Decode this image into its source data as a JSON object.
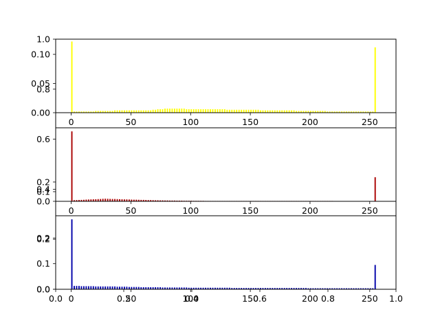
{
  "chart_data": [
    {
      "type": "bar",
      "series_color": "#ffff00",
      "xlim": [
        -13,
        272
      ],
      "ylim": [
        0,
        0.126
      ],
      "x_ticks": [
        "0",
        "50",
        "100",
        "150",
        "200",
        "250"
      ],
      "y_ticks": [
        "0.00",
        "0.05",
        "0.10"
      ],
      "bins": {
        "start": 0,
        "end": 255,
        "step": 2,
        "values": [
          0.122,
          0.002,
          0.002,
          0.002,
          0.002,
          0.002,
          0.002,
          0.002,
          0.002,
          0.002,
          0.003,
          0.003,
          0.003,
          0.003,
          0.003,
          0.003,
          0.003,
          0.003,
          0.004,
          0.004,
          0.004,
          0.004,
          0.004,
          0.004,
          0.004,
          0.004,
          0.004,
          0.004,
          0.004,
          0.004,
          0.004,
          0.004,
          0.004,
          0.004,
          0.005,
          0.005,
          0.006,
          0.006,
          0.006,
          0.007,
          0.007,
          0.007,
          0.007,
          0.007,
          0.007,
          0.007,
          0.007,
          0.007,
          0.006,
          0.006,
          0.006,
          0.006,
          0.006,
          0.006,
          0.006,
          0.006,
          0.006,
          0.006,
          0.006,
          0.006,
          0.006,
          0.006,
          0.006,
          0.006,
          0.006,
          0.005,
          0.005,
          0.005,
          0.005,
          0.005,
          0.005,
          0.005,
          0.005,
          0.005,
          0.005,
          0.005,
          0.005,
          0.005,
          0.005,
          0.004,
          0.004,
          0.004,
          0.004,
          0.004,
          0.004,
          0.004,
          0.004,
          0.004,
          0.004,
          0.004,
          0.004,
          0.004,
          0.004,
          0.004,
          0.003,
          0.003,
          0.003,
          0.003,
          0.003,
          0.003,
          0.003,
          0.003,
          0.003,
          0.003,
          0.003,
          0.003,
          0.003,
          0.002,
          0.002,
          0.002,
          0.002,
          0.002,
          0.002,
          0.002,
          0.002,
          0.002,
          0.002,
          0.002,
          0.002,
          0.002,
          0.002,
          0.002,
          0.002,
          0.002,
          0.002,
          0.002,
          0.002,
          0.112
        ]
      }
    },
    {
      "type": "bar",
      "series_color": "#aa0000",
      "xlim": [
        -13,
        272
      ],
      "ylim": [
        0,
        0.762
      ],
      "x_ticks": [
        "0",
        "50",
        "100",
        "150",
        "200",
        "250"
      ],
      "y_ticks": [
        "0.0",
        "0.1",
        "0.2"
      ],
      "bins": {
        "start": 0,
        "end": 255,
        "step": 2,
        "values": [
          0.725,
          0.012,
          0.013,
          0.014,
          0.015,
          0.016,
          0.018,
          0.019,
          0.02,
          0.021,
          0.022,
          0.023,
          0.024,
          0.026,
          0.027,
          0.026,
          0.025,
          0.024,
          0.024,
          0.023,
          0.022,
          0.021,
          0.02,
          0.02,
          0.019,
          0.018,
          0.017,
          0.017,
          0.016,
          0.015,
          0.015,
          0.014,
          0.013,
          0.013,
          0.012,
          0.011,
          0.011,
          0.01,
          0.01,
          0.009,
          0.009,
          0.008,
          0.008,
          0.008,
          0.007,
          0.007,
          0.007,
          0.006,
          0.006,
          0.006,
          0.006,
          0.005,
          0.005,
          0.005,
          0.005,
          0.005,
          0.004,
          0.004,
          0.004,
          0.004,
          0.004,
          0.004,
          0.004,
          0.004,
          0.004,
          0.004,
          0.004,
          0.004,
          0.004,
          0.004,
          0.004,
          0.004,
          0.004,
          0.004,
          0.004,
          0.004,
          0.004,
          0.004,
          0.004,
          0.004,
          0.004,
          0.004,
          0.004,
          0.004,
          0.004,
          0.004,
          0.004,
          0.004,
          0.004,
          0.004,
          0.004,
          0.004,
          0.004,
          0.004,
          0.004,
          0.004,
          0.004,
          0.004,
          0.004,
          0.004,
          0.004,
          0.004,
          0.004,
          0.004,
          0.004,
          0.004,
          0.004,
          0.004,
          0.004,
          0.004,
          0.003,
          0.003,
          0.003,
          0.003,
          0.003,
          0.003,
          0.003,
          0.002,
          0.002,
          0.002,
          0.002,
          0.002,
          0.002,
          0.002,
          0.001,
          0.001,
          0.001,
          0.25
        ]
      }
    },
    {
      "type": "bar",
      "series_color": "#0000aa",
      "xlim": [
        -13,
        272
      ],
      "ylim": [
        0,
        0.287
      ],
      "x_ticks": [
        "0",
        "50",
        "100",
        "150",
        "200",
        "250"
      ],
      "y_ticks": [
        "0.0",
        "0.1",
        "0.2"
      ],
      "bins": {
        "start": 0,
        "end": 255,
        "step": 2,
        "values": [
          0.273,
          0.013,
          0.013,
          0.013,
          0.012,
          0.012,
          0.012,
          0.012,
          0.012,
          0.012,
          0.011,
          0.011,
          0.011,
          0.011,
          0.011,
          0.011,
          0.011,
          0.011,
          0.011,
          0.01,
          0.01,
          0.01,
          0.01,
          0.01,
          0.009,
          0.009,
          0.009,
          0.009,
          0.009,
          0.008,
          0.008,
          0.008,
          0.008,
          0.008,
          0.008,
          0.008,
          0.008,
          0.008,
          0.007,
          0.007,
          0.007,
          0.007,
          0.007,
          0.007,
          0.007,
          0.007,
          0.007,
          0.007,
          0.007,
          0.006,
          0.006,
          0.006,
          0.006,
          0.006,
          0.006,
          0.006,
          0.006,
          0.006,
          0.006,
          0.006,
          0.006,
          0.006,
          0.006,
          0.006,
          0.006,
          0.006,
          0.006,
          0.005,
          0.005,
          0.005,
          0.005,
          0.005,
          0.005,
          0.005,
          0.005,
          0.005,
          0.005,
          0.005,
          0.005,
          0.005,
          0.005,
          0.005,
          0.005,
          0.005,
          0.005,
          0.005,
          0.005,
          0.005,
          0.005,
          0.005,
          0.005,
          0.005,
          0.005,
          0.005,
          0.005,
          0.005,
          0.005,
          0.005,
          0.005,
          0.004,
          0.004,
          0.004,
          0.004,
          0.004,
          0.004,
          0.004,
          0.004,
          0.004,
          0.004,
          0.004,
          0.004,
          0.004,
          0.004,
          0.004,
          0.004,
          0.004,
          0.004,
          0.004,
          0.004,
          0.004,
          0.004,
          0.004,
          0.004,
          0.004,
          0.004,
          0.004,
          0.004,
          0.095
        ]
      }
    },
    {
      "type": "bar",
      "note_role": "underlying empty axes",
      "xlim": [
        0,
        1
      ],
      "ylim": [
        0,
        1
      ],
      "x_ticks": [
        "0.0",
        "0.2",
        "0.4",
        "0.6",
        "0.8",
        "1.0"
      ],
      "y_ticks": [
        "0.0",
        "0.2",
        "0.4",
        "0.6",
        "0.8",
        "1.0"
      ],
      "bins": {
        "start": 0,
        "end": 0,
        "step": 1,
        "values": []
      }
    }
  ]
}
